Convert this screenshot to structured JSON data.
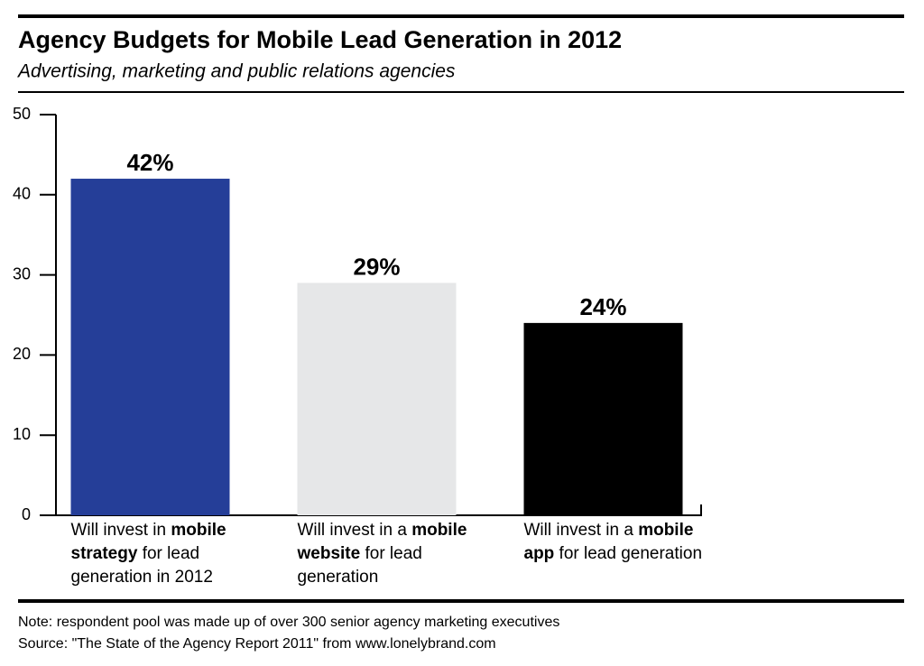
{
  "chart_data": {
    "type": "bar",
    "title": "Agency Budgets for Mobile Lead Generation in 2012",
    "subtitle": "Advertising, marketing and public relations agencies",
    "categories": [
      "Will invest in mobile strategy for lead generation in 2012",
      "Will invest in a mobile website for lead generation",
      "Will invest in a mobile app for lead generation"
    ],
    "category_emphasis": [
      "mobile strategy",
      "mobile website",
      "mobile app"
    ],
    "values": [
      42,
      29,
      24
    ],
    "value_labels": [
      "42%",
      "29%",
      "24%"
    ],
    "colors": [
      "#253e98",
      "#e6e7e8",
      "#000000"
    ],
    "ylim": [
      0,
      50
    ],
    "yticks": [
      0,
      10,
      20,
      30,
      40,
      50
    ],
    "notes": [
      "Note: respondent pool was made up of over 300 senior agency marketing executives",
      "Source: \"The State of the Agency Report 2011\" from www.lonelybrand.com"
    ]
  }
}
